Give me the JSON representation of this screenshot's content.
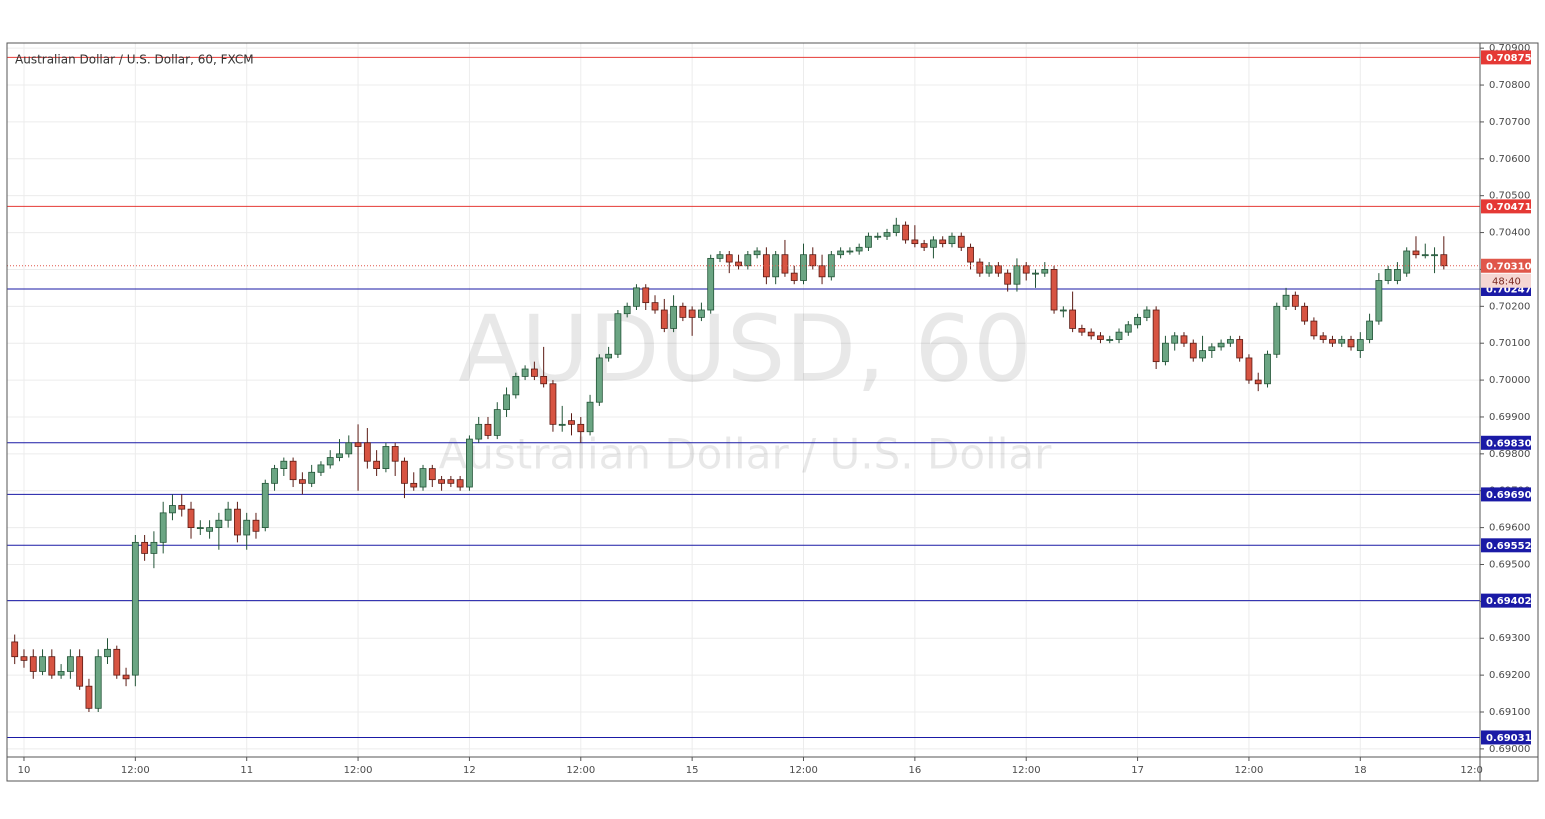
{
  "chart_data": {
    "type": "candlestick",
    "title": "Australian Dollar / U.S. Dollar, 60, FXCM",
    "watermark": "AUDUSD, 60",
    "watermark_subtitle": "Australian Dollar / U.S. Dollar",
    "up_color": "#6ba583",
    "down_color": "#d75442",
    "grid": true,
    "categories": [
      null,
      "10",
      null,
      null,
      null,
      null,
      null,
      null,
      null,
      null,
      null,
      null,
      null,
      "12:00",
      null,
      null,
      null,
      null,
      null,
      null,
      null,
      null,
      null,
      null,
      null,
      "11",
      null,
      null,
      null,
      null,
      null,
      null,
      null,
      null,
      null,
      null,
      null,
      "12:00",
      null,
      null,
      null,
      null,
      null,
      null,
      null,
      null,
      null,
      null,
      null,
      "12",
      null,
      null,
      null,
      null,
      null,
      null,
      null,
      null,
      null,
      null,
      null,
      "12:00",
      null,
      null,
      null,
      null,
      null,
      null,
      null,
      null,
      null,
      null,
      null,
      "15",
      null,
      null,
      null,
      null,
      null,
      null,
      null,
      null,
      null,
      null,
      null,
      "12:00",
      null,
      null,
      null,
      null,
      null,
      null,
      null,
      null,
      null,
      null,
      null,
      "16",
      null,
      null,
      null,
      null,
      null,
      null,
      null,
      null,
      null,
      null,
      null,
      "12:00",
      null,
      null,
      null,
      null,
      null,
      null,
      null,
      null,
      null,
      null,
      null,
      "17",
      null,
      null,
      null,
      null,
      null,
      null,
      null,
      null,
      null,
      null,
      null,
      "12:00",
      null,
      null,
      null,
      null,
      null,
      null,
      null,
      null,
      null,
      null,
      null,
      "18",
      null,
      null,
      null,
      null,
      null,
      null,
      null,
      null,
      null
    ],
    "next_tick_label": "12:0",
    "open": [
      0.6929,
      0.6925,
      0.6925,
      0.6921,
      0.6925,
      0.692,
      0.6921,
      0.6925,
      0.6917,
      0.6911,
      0.6925,
      0.6927,
      0.692,
      0.692,
      0.6956,
      0.6953,
      0.6956,
      0.6964,
      0.6966,
      0.6965,
      0.696,
      0.6959,
      0.696,
      0.6962,
      0.6965,
      0.6958,
      0.6962,
      0.696,
      0.6972,
      0.6976,
      0.6978,
      0.6973,
      0.6972,
      0.6975,
      0.6977,
      0.6979,
      0.698,
      0.6983,
      0.6983,
      0.6978,
      0.6976,
      0.6982,
      0.6978,
      0.6972,
      0.6971,
      0.6976,
      0.6973,
      0.6973,
      0.6973,
      0.6971,
      0.6984,
      0.6988,
      0.6985,
      0.6992,
      0.6996,
      0.7001,
      0.7003,
      0.7001,
      0.6999,
      0.6988,
      0.6989,
      0.6988,
      0.6986,
      0.6994,
      0.7006,
      0.7007,
      0.7018,
      0.702,
      0.7025,
      0.7021,
      0.7019,
      0.7014,
      0.702,
      0.7019,
      0.7017,
      0.7019,
      0.7033,
      0.7034,
      0.7032,
      0.7031,
      0.7034,
      0.7034,
      0.7028,
      0.7034,
      0.7029,
      0.7027,
      0.7034,
      0.7031,
      0.7028,
      0.7034,
      0.7035,
      0.7035,
      0.7036,
      0.7039,
      0.7039,
      0.704,
      0.7042,
      0.7038,
      0.7037,
      0.7036,
      0.7038,
      0.7037,
      0.7039,
      0.7036,
      0.7032,
      0.7029,
      0.7031,
      0.7029,
      0.7026,
      0.7031,
      0.7029,
      0.7029,
      0.703,
      0.7019,
      0.7019,
      0.7014,
      0.7013,
      0.7012,
      0.7011,
      0.7011,
      0.7013,
      0.7015,
      0.7017,
      0.7019,
      0.7005,
      0.701,
      0.7012,
      0.701,
      0.7006,
      0.7008,
      0.7009,
      0.701,
      0.7011,
      0.7006,
      0.7,
      0.6999,
      0.7007,
      0.702,
      0.7023,
      0.702,
      0.7016,
      0.7012,
      0.7011,
      0.701,
      0.7011,
      0.7008,
      0.7011,
      0.7016,
      0.7027,
      0.7027,
      0.7029,
      0.7035,
      0.7034,
      0.7034,
      0.7034
    ],
    "high": [
      0.6931,
      0.6927,
      0.6927,
      0.6927,
      0.6927,
      0.6923,
      0.6927,
      0.6927,
      0.6919,
      0.6927,
      0.693,
      0.6928,
      0.6922,
      0.6958,
      0.6958,
      0.6959,
      0.6967,
      0.6969,
      0.6969,
      0.6967,
      0.6962,
      0.6962,
      0.6964,
      0.6967,
      0.6967,
      0.6964,
      0.6964,
      0.6973,
      0.6977,
      0.6979,
      0.6979,
      0.6975,
      0.6977,
      0.6978,
      0.6981,
      0.6984,
      0.6985,
      0.6988,
      0.6987,
      0.6981,
      0.6983,
      0.6983,
      0.6979,
      0.6975,
      0.6977,
      0.6977,
      0.6974,
      0.6974,
      0.6974,
      0.6985,
      0.699,
      0.699,
      0.6994,
      0.6998,
      0.7002,
      0.7004,
      0.7005,
      0.7009,
      0.7,
      0.6993,
      0.6991,
      0.699,
      0.6996,
      0.7007,
      0.7009,
      0.7019,
      0.7021,
      0.7026,
      0.7026,
      0.7023,
      0.7022,
      0.7023,
      0.7021,
      0.702,
      0.7021,
      0.7034,
      0.7035,
      0.7035,
      0.7034,
      0.7035,
      0.7036,
      0.7036,
      0.7035,
      0.7038,
      0.7031,
      0.7037,
      0.7036,
      0.7034,
      0.7035,
      0.7036,
      0.7036,
      0.7037,
      0.704,
      0.704,
      0.7041,
      0.7044,
      0.7043,
      0.7042,
      0.7038,
      0.7039,
      0.7039,
      0.704,
      0.704,
      0.7037,
      0.7033,
      0.7032,
      0.7032,
      0.703,
      0.7033,
      0.7032,
      0.703,
      0.7032,
      0.7031,
      0.702,
      0.7024,
      0.7015,
      0.7014,
      0.7013,
      0.7012,
      0.7014,
      0.7016,
      0.7018,
      0.702,
      0.702,
      0.7012,
      0.7013,
      0.7013,
      0.7011,
      0.7012,
      0.701,
      0.7011,
      0.7012,
      0.7012,
      0.7007,
      0.7002,
      0.7008,
      0.7021,
      0.7025,
      0.7024,
      0.7021,
      0.7017,
      0.7013,
      0.7012,
      0.7012,
      0.7012,
      0.7013,
      0.7018,
      0.7029,
      0.7031,
      0.7032,
      0.7036,
      0.7039,
      0.7037,
      0.7036,
      0.7039
    ],
    "low": [
      0.6923,
      0.6922,
      0.6919,
      0.692,
      0.6919,
      0.6919,
      0.6919,
      0.6916,
      0.691,
      0.691,
      0.6923,
      0.6919,
      0.6917,
      0.6917,
      0.6951,
      0.6949,
      0.6953,
      0.6962,
      0.6963,
      0.6957,
      0.6958,
      0.6957,
      0.6954,
      0.696,
      0.6956,
      0.6954,
      0.6957,
      0.6959,
      0.697,
      0.6974,
      0.6971,
      0.6969,
      0.6971,
      0.6974,
      0.6976,
      0.6978,
      0.6979,
      0.697,
      0.6976,
      0.6974,
      0.6975,
      0.6974,
      0.6968,
      0.697,
      0.697,
      0.6971,
      0.697,
      0.6971,
      0.697,
      0.697,
      0.6983,
      0.6984,
      0.6984,
      0.699,
      0.6995,
      0.7,
      0.7,
      0.6998,
      0.6986,
      0.6986,
      0.6985,
      0.6983,
      0.6985,
      0.6993,
      0.7005,
      0.7006,
      0.7017,
      0.7019,
      0.7019,
      0.7018,
      0.7013,
      0.7013,
      0.7016,
      0.7012,
      0.7016,
      0.7018,
      0.7032,
      0.7029,
      0.703,
      0.703,
      0.7033,
      0.7026,
      0.7026,
      0.7028,
      0.7026,
      0.7026,
      0.703,
      0.7026,
      0.7027,
      0.7033,
      0.7034,
      0.7034,
      0.7035,
      0.7038,
      0.7038,
      0.7039,
      0.7037,
      0.7036,
      0.7035,
      0.7033,
      0.7036,
      0.7036,
      0.7035,
      0.703,
      0.7028,
      0.7028,
      0.7028,
      0.7024,
      0.7024,
      0.7027,
      0.7025,
      0.7028,
      0.7018,
      0.7017,
      0.7013,
      0.7012,
      0.7011,
      0.701,
      0.701,
      0.701,
      0.7012,
      0.7014,
      0.7016,
      0.7003,
      0.7004,
      0.7008,
      0.7009,
      0.7005,
      0.7005,
      0.7006,
      0.7008,
      0.7009,
      0.7005,
      0.6999,
      0.6997,
      0.6998,
      0.7006,
      0.7019,
      0.7019,
      0.7015,
      0.7011,
      0.701,
      0.7009,
      0.7009,
      0.7008,
      0.7006,
      0.701,
      0.7015,
      0.7026,
      0.7026,
      0.7028,
      0.7033,
      0.7033,
      0.7029,
      0.703
    ],
    "close": [
      0.6925,
      0.6924,
      0.6921,
      0.6925,
      0.692,
      0.6921,
      0.6925,
      0.6917,
      0.6911,
      0.6925,
      0.6927,
      0.692,
      0.6919,
      0.6956,
      0.6953,
      0.6956,
      0.6964,
      0.6966,
      0.6965,
      0.696,
      0.696,
      0.696,
      0.6962,
      0.6965,
      0.6958,
      0.6962,
      0.6959,
      0.6972,
      0.6976,
      0.6978,
      0.6973,
      0.6972,
      0.6975,
      0.6977,
      0.6979,
      0.698,
      0.6983,
      0.6982,
      0.6978,
      0.6976,
      0.6982,
      0.6978,
      0.6972,
      0.6971,
      0.6976,
      0.6973,
      0.6972,
      0.6972,
      0.6971,
      0.6984,
      0.6988,
      0.6985,
      0.6992,
      0.6996,
      0.7001,
      0.7003,
      0.7001,
      0.6999,
      0.6988,
      0.6988,
      0.6988,
      0.6986,
      0.6994,
      0.7006,
      0.7007,
      0.7018,
      0.702,
      0.7025,
      0.7021,
      0.7019,
      0.7014,
      0.702,
      0.7017,
      0.7017,
      0.7019,
      0.7033,
      0.7034,
      0.7032,
      0.7031,
      0.7034,
      0.7035,
      0.7028,
      0.7034,
      0.7029,
      0.7027,
      0.7034,
      0.7031,
      0.7028,
      0.7034,
      0.7035,
      0.7035,
      0.7036,
      0.7039,
      0.7039,
      0.704,
      0.7042,
      0.7038,
      0.7037,
      0.7036,
      0.7038,
      0.7037,
      0.7039,
      0.7036,
      0.7032,
      0.7029,
      0.7031,
      0.7029,
      0.7026,
      0.7031,
      0.7029,
      0.7029,
      0.703,
      0.7019,
      0.7019,
      0.7014,
      0.7013,
      0.7012,
      0.7011,
      0.7011,
      0.7013,
      0.7015,
      0.7017,
      0.7019,
      0.7005,
      0.701,
      0.7012,
      0.701,
      0.7006,
      0.7008,
      0.7009,
      0.701,
      0.7011,
      0.7006,
      0.7,
      0.6999,
      0.7007,
      0.702,
      0.7023,
      0.702,
      0.7016,
      0.7012,
      0.7011,
      0.701,
      0.7011,
      0.7009,
      0.7011,
      0.7016,
      0.7027,
      0.703,
      0.703,
      0.7035,
      0.7034,
      0.7034,
      0.7034,
      0.7031
    ],
    "ylim": [
      0.68978,
      0.70914
    ],
    "yticks": [
      {
        "value": 0.69,
        "label": "0.69000"
      },
      {
        "value": 0.691,
        "label": "0.69100"
      },
      {
        "value": 0.692,
        "label": "0.69200"
      },
      {
        "value": 0.693,
        "label": "0.69300"
      },
      {
        "value": 0.694,
        "label": "0.69400"
      },
      {
        "value": 0.695,
        "label": "0.69500"
      },
      {
        "value": 0.696,
        "label": "0.69600"
      },
      {
        "value": 0.697,
        "label": "0.69700"
      },
      {
        "value": 0.698,
        "label": "0.69800"
      },
      {
        "value": 0.699,
        "label": "0.69900"
      },
      {
        "value": 0.7,
        "label": "0.70000"
      },
      {
        "value": 0.701,
        "label": "0.70100"
      },
      {
        "value": 0.702,
        "label": "0.70200"
      },
      {
        "value": 0.703,
        "label": "0.70300"
      },
      {
        "value": 0.704,
        "label": "0.70400"
      },
      {
        "value": 0.705,
        "label": "0.70500"
      },
      {
        "value": 0.706,
        "label": "0.70600"
      },
      {
        "value": 0.707,
        "label": "0.70700"
      },
      {
        "value": 0.708,
        "label": "0.70800"
      },
      {
        "value": 0.709,
        "label": "0.70900"
      }
    ],
    "levels": [
      {
        "value": 0.70875,
        "label": "0.70875",
        "color": "#e53935"
      },
      {
        "value": 0.70471,
        "label": "0.70471",
        "color": "#e53935"
      },
      {
        "value": 0.70247,
        "label": "0.70247",
        "color": "#1a1aa6"
      },
      {
        "value": 0.6983,
        "label": "0.69830",
        "color": "#1a1aa6"
      },
      {
        "value": 0.6969,
        "label": "0.69690",
        "color": "#1a1aa6"
      },
      {
        "value": 0.69552,
        "label": "0.69552",
        "color": "#1a1aa6"
      },
      {
        "value": 0.69402,
        "label": "0.69402",
        "color": "#1a1aa6"
      },
      {
        "value": 0.69031,
        "label": "0.69031",
        "color": "#1a1aa6"
      }
    ],
    "last_price": {
      "value": 0.7031,
      "label": "0.70310",
      "countdown": "48:40",
      "color": "#e0574a"
    }
  }
}
